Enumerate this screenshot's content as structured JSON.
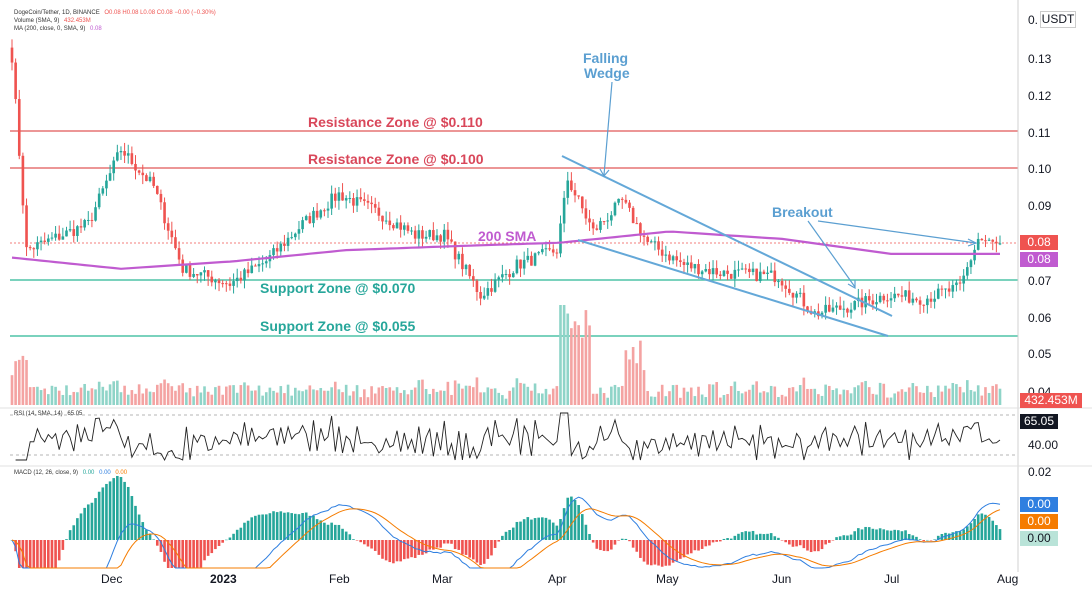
{
  "legend": {
    "main": "DogeCoin/Tether, 1D, BINANCE",
    "ohlc": "O0.08 H0.08 L0.08 C0.08 −0.00 (−0.30%)",
    "volume_label": "Volume (SMA, 9)",
    "volume_value": "432.453M",
    "ma_label": "MA (200, close, 0, SMA, 9)",
    "ma_value": "0.08",
    "rsi_label": "RSI (14, SMA, 14)",
    "rsi_value": "65.05",
    "macd_label": "MACD (12, 26, close, 9)",
    "macd_v1": "0.00",
    "macd_v2": "0.00",
    "macd_v3": "0.00"
  },
  "axis": {
    "currency": "USDT",
    "price_ticks": [
      "0.13",
      "0.12",
      "0.11",
      "0.10",
      "0.09",
      "0.07",
      "0.06",
      "0.05",
      "0.04"
    ],
    "price_top": "0.",
    "rsi_tick": "40.00",
    "macd_tick": "0.02",
    "x_ticks": [
      "Dec",
      "2023",
      "Feb",
      "Mar",
      "Apr",
      "May",
      "Jun",
      "Jul",
      "Aug"
    ]
  },
  "badges": {
    "price": "0.08",
    "ma": "0.08",
    "volume": "432.453M",
    "rsi": "65.05",
    "macd1": "0.00",
    "macd2": "0.00",
    "macd3": "0.00"
  },
  "annotations": {
    "resistance_110": "Resistance Zone @ $0.110",
    "resistance_100": "Resistance Zone @ $0.100",
    "support_070": "Support Zone @ $0.070",
    "support_055": "Support Zone @ $0.055",
    "falling_wedge_1": "Falling",
    "falling_wedge_2": "Wedge",
    "breakout": "Breakout",
    "sma200": "200 SMA"
  },
  "colors": {
    "up": "#26a69a",
    "down": "#ef5350",
    "up_vol": "#8fd4c8",
    "down_vol": "#f4a3a2",
    "resistance": "#e57373",
    "support": "#4fc3a7",
    "sma": "#c05bd0",
    "wedge": "#64a8d8",
    "annotation_red": "#d9475a",
    "annotation_green": "#26a69a",
    "annotation_blue": "#5b9fd1"
  },
  "chart_data": {
    "type": "candlestick",
    "symbol": "DOGE/USDT",
    "ylim": [
      0.04,
      0.14
    ],
    "levels": {
      "resistance": [
        0.11,
        0.1
      ],
      "support": [
        0.07,
        0.055
      ]
    },
    "rsi_last": 65.05,
    "volume_last": "432.453M",
    "x_range": [
      "Nov 2022",
      "Aug 2023"
    ],
    "keypoints": [
      {
        "date": "2022-11-01",
        "close": 0.13
      },
      {
        "date": "2022-11-05",
        "close": 0.078
      },
      {
        "date": "2022-11-22",
        "close": 0.085
      },
      {
        "date": "2022-12-01",
        "close": 0.105
      },
      {
        "date": "2022-12-10",
        "close": 0.095
      },
      {
        "date": "2022-12-18",
        "close": 0.073
      },
      {
        "date": "2022-12-31",
        "close": 0.069
      },
      {
        "date": "2023-01-10",
        "close": 0.075
      },
      {
        "date": "2023-01-20",
        "close": 0.085
      },
      {
        "date": "2023-01-30",
        "close": 0.093
      },
      {
        "date": "2023-02-10",
        "close": 0.088
      },
      {
        "date": "2023-02-20",
        "close": 0.082
      },
      {
        "date": "2023-02-28",
        "close": 0.082
      },
      {
        "date": "2023-03-10",
        "close": 0.066
      },
      {
        "date": "2023-03-20",
        "close": 0.074
      },
      {
        "date": "2023-03-31",
        "close": 0.078
      },
      {
        "date": "2023-04-03",
        "close": 0.097
      },
      {
        "date": "2023-04-10",
        "close": 0.083
      },
      {
        "date": "2023-04-18",
        "close": 0.091
      },
      {
        "date": "2023-04-25",
        "close": 0.08
      },
      {
        "date": "2023-05-05",
        "close": 0.074
      },
      {
        "date": "2023-05-15",
        "close": 0.072
      },
      {
        "date": "2023-05-31",
        "close": 0.071
      },
      {
        "date": "2023-06-10",
        "close": 0.061
      },
      {
        "date": "2023-06-20",
        "close": 0.063
      },
      {
        "date": "2023-06-30",
        "close": 0.066
      },
      {
        "date": "2023-07-10",
        "close": 0.065
      },
      {
        "date": "2023-07-20",
        "close": 0.068
      },
      {
        "date": "2023-07-25",
        "close": 0.081
      },
      {
        "date": "2023-07-31",
        "close": 0.079
      }
    ],
    "sma200": [
      {
        "date": "2022-11-01",
        "value": 0.076
      },
      {
        "date": "2022-12-01",
        "value": 0.073
      },
      {
        "date": "2023-01-01",
        "value": 0.075
      },
      {
        "date": "2023-02-01",
        "value": 0.078
      },
      {
        "date": "2023-03-01",
        "value": 0.079
      },
      {
        "date": "2023-04-01",
        "value": 0.08
      },
      {
        "date": "2023-05-01",
        "value": 0.083
      },
      {
        "date": "2023-06-01",
        "value": 0.081
      },
      {
        "date": "2023-07-01",
        "value": 0.077
      },
      {
        "date": "2023-07-31",
        "value": 0.077
      }
    ]
  }
}
